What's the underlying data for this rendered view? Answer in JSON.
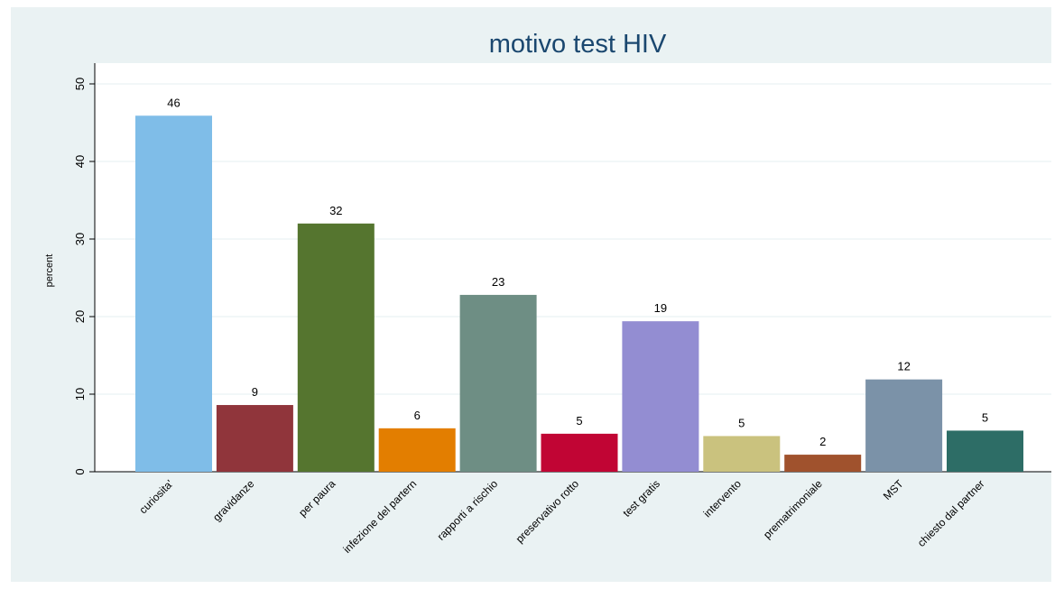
{
  "chart_data": {
    "type": "bar",
    "title": "motivo test HIV",
    "y_label": "percent",
    "categories": [
      "curiosita'",
      "gravidanze",
      "per paura",
      "infezione del partern",
      "rapporti a rischio",
      "preservativo rotto",
      "test gratis",
      "intervento",
      "prematrimoniale",
      "MST",
      "chiesto dal partner"
    ],
    "values": [
      45.9,
      8.6,
      32.0,
      5.6,
      22.8,
      4.9,
      19.4,
      4.6,
      2.2,
      11.9,
      5.3
    ],
    "value_labels": [
      "46",
      "9",
      "32",
      "6",
      "23",
      "5",
      "19",
      "5",
      "2",
      "12",
      "5"
    ],
    "colors": [
      "#7fbde8",
      "#90353b",
      "#55752f",
      "#e37e00",
      "#6e8e84",
      "#c10534",
      "#938dd2",
      "#cac27e",
      "#a0522d",
      "#7b92a8",
      "#2d6d66"
    ],
    "ylim": [
      0,
      50
    ],
    "yticks": [
      0,
      10,
      20,
      30,
      40,
      50
    ],
    "grid": true
  }
}
